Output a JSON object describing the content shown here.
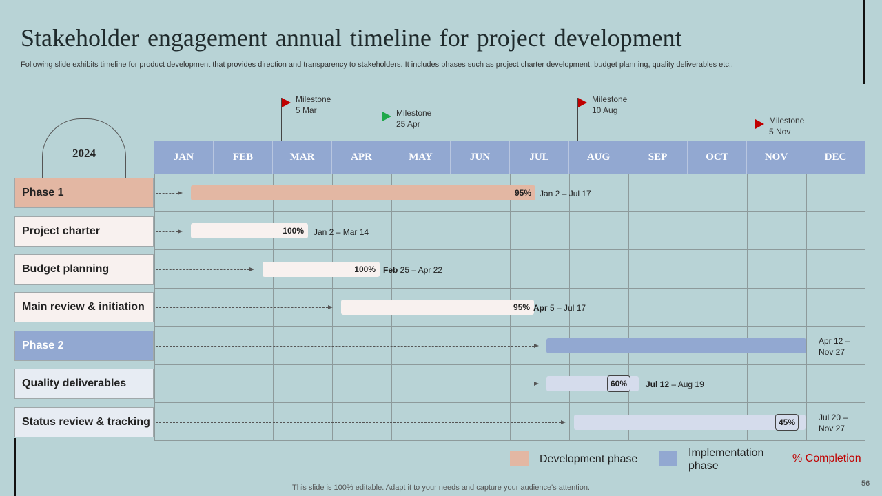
{
  "title": "Stakeholder engagement annual timeline for project development",
  "subtitle": "Following slide exhibits timeline for product development that provides direction and transparency to stakeholders. It includes phases such as project charter development, budget planning, quality deliverables etc..",
  "year": "2024",
  "months": [
    "JAN",
    "FEB",
    "MAR",
    "APR",
    "MAY",
    "JUN",
    "JUL",
    "AUG",
    "SEP",
    "OCT",
    "NOV",
    "DEC"
  ],
  "milestones": [
    {
      "line1": "Milestone",
      "line2": "5 Mar",
      "color": "#c00000"
    },
    {
      "line1": "Milestone",
      "line2": "25 Apr",
      "color": "#1ea84a"
    },
    {
      "line1": "Milestone",
      "line2": "10 Aug",
      "color": "#c00000"
    },
    {
      "line1": "Milestone",
      "line2": "5 Nov",
      "color": "#c00000"
    }
  ],
  "rows": [
    {
      "label": "Phase 1",
      "completion": "95%",
      "date_bold": "",
      "date_rest": "Jan 2 – Jul 17"
    },
    {
      "label": "Project charter",
      "completion": "100%",
      "date_bold": "",
      "date_rest": "Jan 2 – Mar 14"
    },
    {
      "label": "Budget planning",
      "completion": "100%",
      "date_bold": "Feb",
      "date_rest": " 25 – Apr 22"
    },
    {
      "label": "Main review & initiation",
      "completion": "95%",
      "date_bold": "Apr",
      "date_rest": " 5 – Jul 17"
    },
    {
      "label": "Phase 2",
      "completion": "",
      "date_line1": "Apr 12 –",
      "date_line2": "Nov 27"
    },
    {
      "label": "Quality deliverables",
      "completion": "60%",
      "date_bold": "Jul 12",
      "date_rest": " – Aug 19"
    },
    {
      "label": "Status review & tracking",
      "completion": "45%",
      "date_line1": "Jul 20 –",
      "date_line2": "Nov 27"
    }
  ],
  "legend": {
    "development": "Development phase",
    "implementation_line1": "Implementation",
    "implementation_line2": "phase",
    "completion": "% Completion",
    "development_color": "#e3b7a3",
    "implementation_color": "#92a8d1"
  },
  "footer": "This slide is 100% editable. Adapt it to your needs and capture your audience's attention.",
  "page_number": "56"
}
